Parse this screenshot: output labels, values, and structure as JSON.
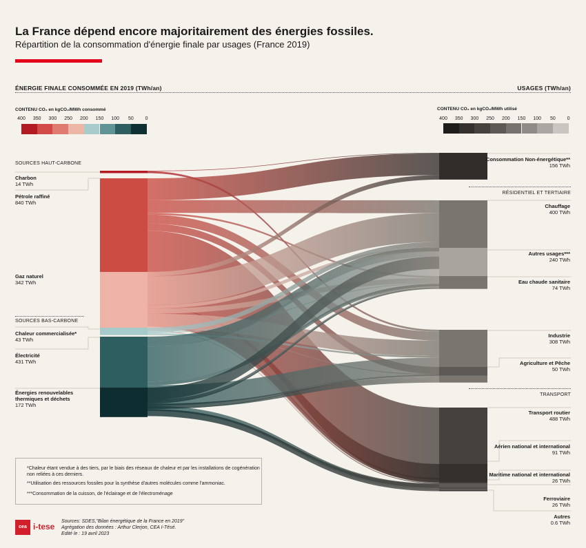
{
  "title": "La France dépend encore majoritairement des énergies fossiles.",
  "subtitle": "Répartition de la consommation d'énergie finale par usages (France 2019)",
  "left_header": "ÉNERGIE FINALE CONSOMMÉE EN 2019 (TWh/an)",
  "right_header": "USAGES (TWh/an)",
  "left_scale": {
    "title": "CONTENU CO₂ en kgCO₂/MWh consommé",
    "ticks": [
      "400",
      "350",
      "300",
      "250",
      "200",
      "150",
      "100",
      "50",
      "0"
    ],
    "colors": [
      "#b31b22",
      "#d24a48",
      "#e07b70",
      "#edb7a8",
      "#a8cbcc",
      "#5f9396",
      "#2f5e60",
      "#0f3134"
    ]
  },
  "right_scale": {
    "title": "CONTENU CO₂ en kgCO₂/MWh utilisé",
    "ticks": [
      "400",
      "350",
      "300",
      "250",
      "200",
      "150",
      "100",
      "50",
      "0"
    ],
    "colors": [
      "#1f1d1b",
      "#33302d",
      "#45423e",
      "#5d5955",
      "#76726d",
      "#8f8b86",
      "#aaa6a1",
      "#c9c5c0"
    ]
  },
  "sections": {
    "high_carbon": "SOURCES HAUT-CARBONE",
    "low_carbon": "SOURCES BAS-CARBONE",
    "residential": "RÉSIDENTIEL ET TERTIAIRE",
    "transport": "TRANSPORT"
  },
  "chart_data": {
    "type": "sankey",
    "title": "La France dépend encore majoritairement des énergies fossiles.",
    "subtitle": "Répartition de la consommation d'énergie finale par usages (France 2019)",
    "units": "TWh/an",
    "sources": [
      {
        "name": "Charbon",
        "value_label": "14 TWh",
        "value": 14,
        "color": "#b31b22"
      },
      {
        "name": "Pétrole raffiné",
        "value_label": "840 TWh",
        "value": 840,
        "color": "#cc4c43"
      },
      {
        "name": "Gaz naturel",
        "value_label": "342 TWh",
        "value": 342,
        "color": "#eeb3a6"
      },
      {
        "name": "Chaleur commercialisée*",
        "value_label": "43 TWh",
        "value": 43,
        "color": "#a6c9ca"
      },
      {
        "name": "Électricité",
        "value_label": "431 TWh",
        "value": 431,
        "color": "#2f5e60"
      },
      {
        "name": "Énergies renouvelables thermiques et déchets",
        "value_label": "172 TWh",
        "value": 172,
        "color": "#0e2d30"
      }
    ],
    "uses": [
      {
        "name": "Consommation Non-énergétique**",
        "value_label": "156 TWh",
        "value": 156,
        "color": "#302d2a"
      },
      {
        "name": "Chauffage",
        "value_label": "400 TWh",
        "value": 400,
        "color": "#7a766f"
      },
      {
        "name": "Autres usages***",
        "value_label": "240 TWh",
        "value": 240,
        "color": "#a8a49e"
      },
      {
        "name": "Eau chaude sanitaire",
        "value_label": "74 TWh",
        "value": 74,
        "color": "#7a766f"
      },
      {
        "name": "Industrie",
        "value_label": "308 TWh",
        "value": 308,
        "color": "#7a766f"
      },
      {
        "name": "Agriculture et Pêche",
        "value_label": "50 TWh",
        "value": 50,
        "color": "#5d5955"
      },
      {
        "name": "Transport routier",
        "value_label": "488 TWh",
        "value": 488,
        "color": "#45413d"
      },
      {
        "name": "Aérien national et international",
        "value_label": "91 TWh",
        "value": 91,
        "color": "#33302d"
      },
      {
        "name": "Maritime national et international",
        "value_label": "26 TWh",
        "value": 26,
        "color": "#33302d"
      },
      {
        "name": "Ferroviaire",
        "value_label": "26 TWh",
        "value": 26,
        "color": "#5d5955"
      },
      {
        "name": "Autres",
        "value_label": "0.6 TWh",
        "value": 0.6,
        "color": "#7a766f"
      }
    ],
    "flows": [
      {
        "from": 0,
        "to": 0,
        "value": 3
      },
      {
        "from": 0,
        "to": 4,
        "value": 11
      },
      {
        "from": 1,
        "to": 0,
        "value": 127
      },
      {
        "from": 1,
        "to": 1,
        "value": 75
      },
      {
        "from": 1,
        "to": 3,
        "value": 10
      },
      {
        "from": 1,
        "to": 4,
        "value": 52
      },
      {
        "from": 1,
        "to": 5,
        "value": 42
      },
      {
        "from": 1,
        "to": 6,
        "value": 440
      },
      {
        "from": 1,
        "to": 7,
        "value": 91
      },
      {
        "from": 1,
        "to": 8,
        "value": 26
      },
      {
        "from": 1,
        "to": 9,
        "value": 1
      },
      {
        "from": 2,
        "to": 0,
        "value": 26
      },
      {
        "from": 2,
        "to": 1,
        "value": 168
      },
      {
        "from": 2,
        "to": 2,
        "value": 20
      },
      {
        "from": 2,
        "to": 3,
        "value": 30
      },
      {
        "from": 2,
        "to": 4,
        "value": 90
      },
      {
        "from": 2,
        "to": 5,
        "value": 4
      },
      {
        "from": 2,
        "to": 6,
        "value": 4
      },
      {
        "from": 3,
        "to": 1,
        "value": 28
      },
      {
        "from": 3,
        "to": 3,
        "value": 5
      },
      {
        "from": 3,
        "to": 4,
        "value": 10
      },
      {
        "from": 4,
        "to": 1,
        "value": 57
      },
      {
        "from": 4,
        "to": 2,
        "value": 205
      },
      {
        "from": 4,
        "to": 3,
        "value": 22
      },
      {
        "from": 4,
        "to": 4,
        "value": 116
      },
      {
        "from": 4,
        "to": 5,
        "value": 2
      },
      {
        "from": 4,
        "to": 6,
        "value": 3
      },
      {
        "from": 4,
        "to": 9,
        "value": 25
      },
      {
        "from": 4,
        "to": 10,
        "value": 1
      },
      {
        "from": 5,
        "to": 1,
        "value": 72
      },
      {
        "from": 5,
        "to": 2,
        "value": 15
      },
      {
        "from": 5,
        "to": 3,
        "value": 7
      },
      {
        "from": 5,
        "to": 4,
        "value": 29
      },
      {
        "from": 5,
        "to": 5,
        "value": 2
      },
      {
        "from": 5,
        "to": 6,
        "value": 41
      }
    ]
  },
  "footnotes": [
    "*Chaleur étant vendue à des tiers, par le biais des réseaux de chaleur et par les installations de cogénération non reliées à ces derniers.",
    "**Utilisation des ressources fossiles pour la synthèse d'autres molécules comme l'ammoniac.",
    "***Consommation de la cuisson, de l'éclairage et de l'électroménage"
  ],
  "logos": {
    "cea": "cea",
    "itese": "i-tese"
  },
  "sources_text": [
    "Sources: SDES,\"Bilan énergétique de la France en 2019\"",
    "Agrégation des données : Arthur Clerjon, CEA I-Tésé.",
    "Edité le : 19  avril 2023"
  ]
}
